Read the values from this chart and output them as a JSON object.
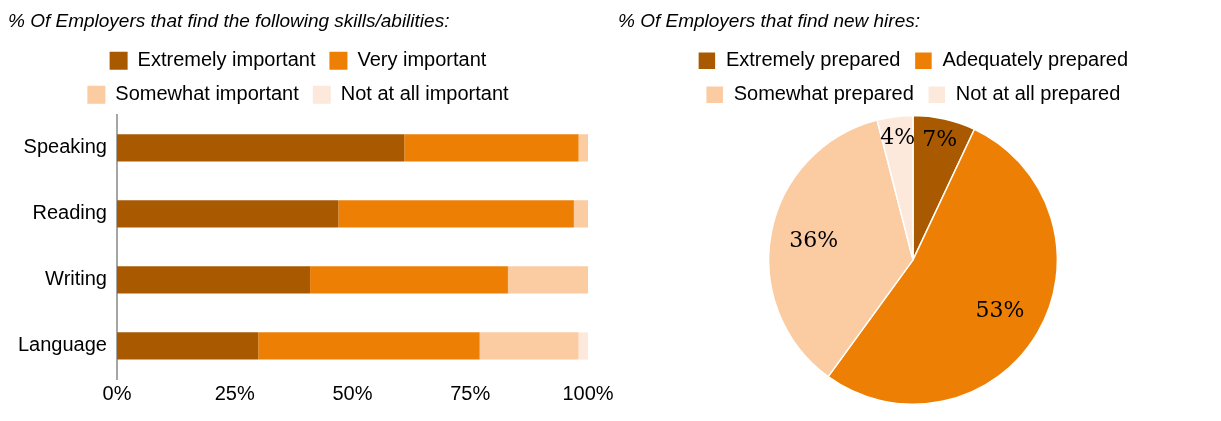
{
  "chart_data": [
    {
      "type": "bar",
      "title": "% Of Employers that find the following skills/abilities:",
      "orientation": "horizontal",
      "stacked": true,
      "categories": [
        "Speaking",
        "Reading",
        "Writing",
        "Language"
      ],
      "series": [
        {
          "name": "Extremely important",
          "color": "#a95a00",
          "values": [
            61,
            47,
            41,
            30
          ]
        },
        {
          "name": "Very important",
          "color": "#ed8004",
          "values": [
            37,
            50,
            42,
            47
          ]
        },
        {
          "name": "Somewhat important",
          "color": "#fbcba2",
          "values": [
            2,
            3,
            17,
            21
          ]
        },
        {
          "name": "Not at all important",
          "color": "#fde9db",
          "values": [
            0,
            0,
            0,
            2
          ]
        }
      ],
      "xlim": [
        0,
        100
      ],
      "xticks": [
        {
          "value": 0,
          "label": "0%"
        },
        {
          "value": 25,
          "label": "25%"
        },
        {
          "value": 50,
          "label": "50%"
        },
        {
          "value": 75,
          "label": "75%"
        },
        {
          "value": 100,
          "label": "100%"
        }
      ],
      "grid": false,
      "legend": "top"
    },
    {
      "type": "pie",
      "title": "% Of Employers that find new hires:",
      "categories": [
        "Extremely prepared",
        "Adequately prepared",
        "Somewhat prepared",
        "Not at all prepared"
      ],
      "values": [
        7,
        53,
        36,
        4
      ],
      "colors": [
        "#a95a00",
        "#ed8004",
        "#fbcba2",
        "#fde9db"
      ],
      "value_labels": [
        "7%",
        "53%",
        "36%",
        "4%"
      ],
      "legend": "top"
    }
  ]
}
